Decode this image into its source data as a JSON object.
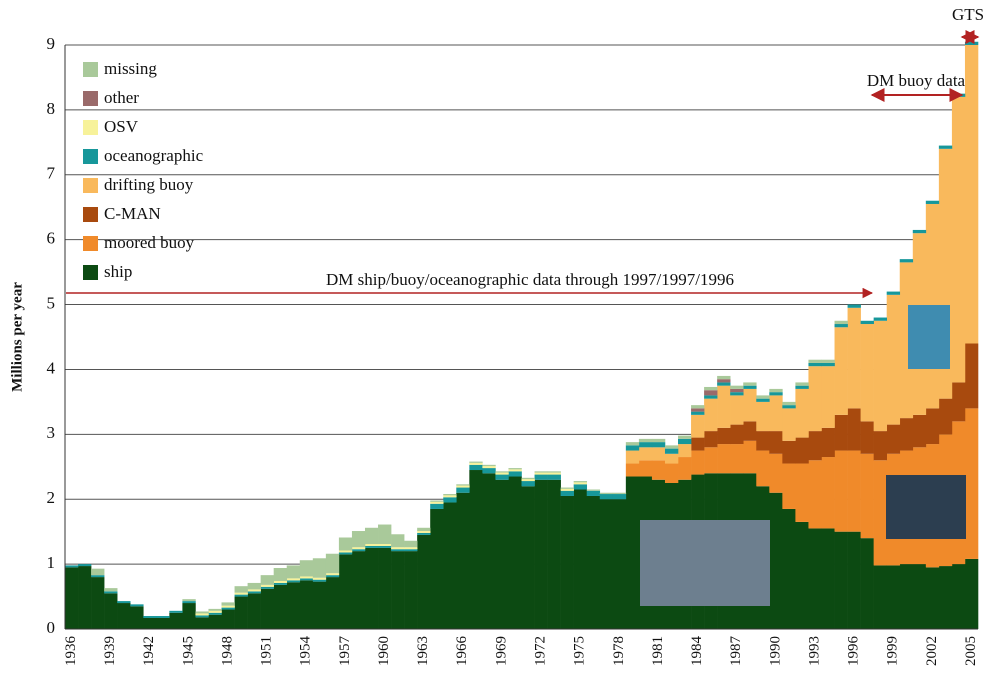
{
  "chart_data": {
    "type": "stacked-bar",
    "y_label": "Millions per year",
    "annotations": [
      "DM ship/buoy/oceanographic data through 1997/1997/1996",
      "DM buoy data",
      "GTS"
    ],
    "categories": [
      "1936",
      null,
      null,
      "1939",
      null,
      null,
      "1942",
      null,
      null,
      "1945",
      null,
      null,
      "1948",
      null,
      null,
      "1951",
      null,
      null,
      "1954",
      null,
      null,
      "1957",
      null,
      null,
      "1960",
      null,
      null,
      "1963",
      null,
      null,
      "1966",
      null,
      null,
      "1969",
      null,
      null,
      "1972",
      null,
      null,
      "1975",
      null,
      null,
      "1978",
      null,
      null,
      "1981",
      null,
      null,
      "1984",
      null,
      null,
      "1987",
      null,
      null,
      "1990",
      null,
      null,
      "1993",
      null,
      null,
      "1996",
      null,
      null,
      "1999",
      null,
      null,
      "2002",
      null,
      null,
      "2005"
    ],
    "ylim": [
      0,
      9
    ],
    "yticks": [
      0,
      1,
      2,
      3,
      4,
      5,
      6,
      7,
      8,
      9
    ],
    "grid": true,
    "series": [
      {
        "name": "ship",
        "color": "#0c4a12",
        "values": [
          0.95,
          0.97,
          0.8,
          0.55,
          0.4,
          0.35,
          0.17,
          0.17,
          0.25,
          0.4,
          0.18,
          0.22,
          0.3,
          0.5,
          0.55,
          0.62,
          0.68,
          0.72,
          0.75,
          0.73,
          0.8,
          1.15,
          1.2,
          1.25,
          1.25,
          1.2,
          1.2,
          1.45,
          1.85,
          1.95,
          2.1,
          2.45,
          2.4,
          2.3,
          2.35,
          2.2,
          2.3,
          2.3,
          2.05,
          2.15,
          2.05,
          2.0,
          2.0,
          2.35,
          2.35,
          2.3,
          2.25,
          2.3,
          2.38,
          2.4,
          2.4,
          2.4,
          2.4,
          2.2,
          2.1,
          1.85,
          1.65,
          1.55,
          1.55,
          1.5,
          1.5,
          1.4,
          0.98,
          0.98,
          1.0,
          1.0,
          0.95,
          0.97,
          1.0,
          1.08
        ]
      },
      {
        "name": "moored buoy",
        "color": "#f08a2a",
        "values": [
          0,
          0,
          0,
          0,
          0,
          0,
          0,
          0,
          0,
          0,
          0,
          0,
          0,
          0,
          0,
          0,
          0,
          0,
          0,
          0,
          0,
          0,
          0,
          0,
          0,
          0,
          0,
          0,
          0,
          0,
          0,
          0,
          0,
          0,
          0,
          0,
          0,
          0,
          0,
          0,
          0,
          0,
          0,
          0.2,
          0.25,
          0.3,
          0.3,
          0.35,
          0.37,
          0.4,
          0.45,
          0.45,
          0.5,
          0.55,
          0.6,
          0.7,
          0.9,
          1.05,
          1.1,
          1.25,
          1.25,
          1.3,
          1.62,
          1.72,
          1.75,
          1.8,
          1.9,
          2.03,
          2.2,
          2.32
        ]
      },
      {
        "name": "C-MAN",
        "color": "#a84a0e",
        "values": [
          0,
          0,
          0,
          0,
          0,
          0,
          0,
          0,
          0,
          0,
          0,
          0,
          0,
          0,
          0,
          0,
          0,
          0,
          0,
          0,
          0,
          0,
          0,
          0,
          0,
          0,
          0,
          0,
          0,
          0,
          0,
          0,
          0,
          0,
          0,
          0,
          0,
          0,
          0,
          0,
          0,
          0,
          0,
          0,
          0,
          0,
          0,
          0,
          0.2,
          0.25,
          0.25,
          0.3,
          0.3,
          0.3,
          0.35,
          0.35,
          0.4,
          0.45,
          0.45,
          0.55,
          0.65,
          0.5,
          0.45,
          0.45,
          0.5,
          0.5,
          0.55,
          0.55,
          0.6,
          1.0
        ]
      },
      {
        "name": "drifting buoy",
        "color": "#f9b95c",
        "values": [
          0,
          0,
          0,
          0,
          0,
          0,
          0,
          0,
          0,
          0,
          0,
          0,
          0,
          0,
          0,
          0,
          0,
          0,
          0,
          0,
          0,
          0,
          0,
          0,
          0,
          0,
          0,
          0,
          0,
          0,
          0,
          0,
          0,
          0,
          0,
          0,
          0,
          0,
          0,
          0,
          0,
          0,
          0,
          0.2,
          0.2,
          0.2,
          0.15,
          0.2,
          0.35,
          0.5,
          0.65,
          0.45,
          0.5,
          0.45,
          0.55,
          0.5,
          0.75,
          1.0,
          0.95,
          1.35,
          1.55,
          1.5,
          1.7,
          2.0,
          2.4,
          2.8,
          3.15,
          3.85,
          4.4,
          4.6
        ]
      },
      {
        "name": "oceanographic",
        "color": "#17979a",
        "values": [
          0.03,
          0.03,
          0.03,
          0.03,
          0.03,
          0.03,
          0.03,
          0.03,
          0.03,
          0.03,
          0.03,
          0.03,
          0.03,
          0.03,
          0.03,
          0.03,
          0.03,
          0.03,
          0.03,
          0.03,
          0.03,
          0.03,
          0.03,
          0.03,
          0.03,
          0.03,
          0.03,
          0.03,
          0.08,
          0.08,
          0.08,
          0.08,
          0.08,
          0.08,
          0.08,
          0.08,
          0.08,
          0.08,
          0.08,
          0.08,
          0.08,
          0.08,
          0.08,
          0.08,
          0.08,
          0.08,
          0.08,
          0.08,
          0.05,
          0.05,
          0.05,
          0.05,
          0.05,
          0.05,
          0.05,
          0.05,
          0.05,
          0.05,
          0.05,
          0.05,
          0.05,
          0.05,
          0.05,
          0.05,
          0.05,
          0.05,
          0.05,
          0.05,
          0.05,
          0.05
        ]
      },
      {
        "name": "OSV",
        "color": "#f7f29a",
        "values": [
          0,
          0,
          0,
          0,
          0,
          0,
          0,
          0,
          0,
          0,
          0.03,
          0.03,
          0.03,
          0.03,
          0.03,
          0.03,
          0.03,
          0.03,
          0.03,
          0.03,
          0.03,
          0.03,
          0.03,
          0.03,
          0.03,
          0.03,
          0.03,
          0.03,
          0.03,
          0.03,
          0.03,
          0.03,
          0.03,
          0.03,
          0.03,
          0.03,
          0.03,
          0.03,
          0.03,
          0.03,
          0,
          0,
          0,
          0,
          0,
          0,
          0,
          0,
          0,
          0,
          0,
          0,
          0,
          0,
          0,
          0,
          0,
          0,
          0,
          0,
          0,
          0,
          0,
          0,
          0,
          0,
          0,
          0,
          0,
          0
        ]
      },
      {
        "name": "other",
        "color": "#9a6a6a",
        "values": [
          0,
          0,
          0,
          0,
          0,
          0,
          0,
          0,
          0,
          0,
          0,
          0,
          0,
          0,
          0,
          0,
          0,
          0,
          0,
          0,
          0,
          0,
          0,
          0,
          0,
          0,
          0,
          0,
          0,
          0,
          0,
          0,
          0,
          0,
          0,
          0,
          0,
          0,
          0,
          0,
          0,
          0,
          0,
          0,
          0,
          0,
          0,
          0,
          0.05,
          0.08,
          0.05,
          0.05,
          0,
          0,
          0,
          0,
          0,
          0,
          0,
          0,
          0,
          0,
          0,
          0,
          0,
          0,
          0,
          0,
          0,
          0
        ]
      },
      {
        "name": "missing",
        "color": "#a9c99a",
        "values": [
          0,
          0,
          0.1,
          0.05,
          0,
          0,
          0,
          0,
          0,
          0.03,
          0.03,
          0.03,
          0.05,
          0.1,
          0.1,
          0.15,
          0.2,
          0.2,
          0.25,
          0.3,
          0.3,
          0.2,
          0.25,
          0.25,
          0.3,
          0.2,
          0.1,
          0.05,
          0.02,
          0.02,
          0.02,
          0.02,
          0.02,
          0.02,
          0.02,
          0.02,
          0.02,
          0.02,
          0.02,
          0.02,
          0.02,
          0.02,
          0.02,
          0.05,
          0.05,
          0.05,
          0.05,
          0.05,
          0.05,
          0.05,
          0.05,
          0.05,
          0.05,
          0.05,
          0.05,
          0.05,
          0.05,
          0.05,
          0.05,
          0.05,
          0,
          0,
          0,
          0,
          0,
          0,
          0,
          0,
          0,
          0
        ]
      }
    ]
  }
}
